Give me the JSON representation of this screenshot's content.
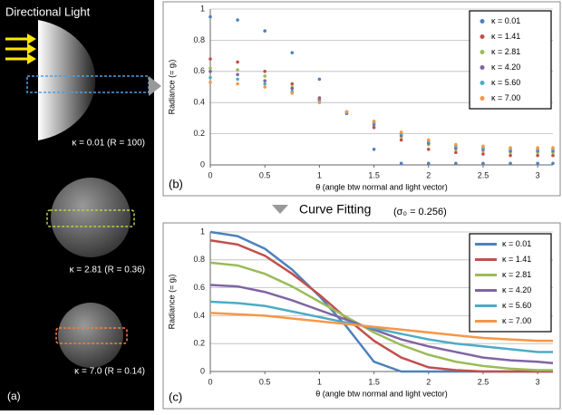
{
  "panel_a": {
    "title": "Directional Light",
    "label_1": "κ = 0.01 (R = 100)",
    "label_2": "κ = 2.81 (R = 0.36)",
    "label_3": "κ = 7.0 (R = 0.14)",
    "panel_label": "(a)"
  },
  "fitting": {
    "title": "Curve Fitting",
    "note": "(σ₀ = 0.256)"
  },
  "chart_data": [
    {
      "type": "scatter",
      "panel_label": "(b)",
      "x_label": "θ (angle btw normal and light vector)",
      "y_label": "Radiance (= gᵢ)",
      "x": [
        0,
        0.25,
        0.5,
        0.75,
        1,
        1.25,
        1.5,
        1.75,
        2,
        2.25,
        2.5,
        2.75,
        3,
        3.14
      ],
      "xlim": [
        0,
        3.14
      ],
      "ylim": [
        0,
        1
      ],
      "xticks": [
        0,
        0.5,
        1,
        1.5,
        2,
        2.5,
        3
      ],
      "yticks": [
        0,
        0.2,
        0.4,
        0.6,
        0.8,
        1
      ],
      "grid": true,
      "legend": "upper right",
      "series": [
        {
          "name": "κ = 0.01",
          "color": "#4f81bd",
          "values": [
            0.95,
            0.93,
            0.86,
            0.72,
            0.55,
            0.33,
            0.1,
            0.01,
            0.01,
            0.01,
            0.01,
            0.01,
            0.01,
            0.01
          ]
        },
        {
          "name": "κ = 1.41",
          "color": "#c0504d",
          "values": [
            0.68,
            0.66,
            0.6,
            0.52,
            0.43,
            0.34,
            0.24,
            0.16,
            0.1,
            0.08,
            0.07,
            0.06,
            0.06,
            0.06
          ]
        },
        {
          "name": "κ = 2.81",
          "color": "#9bbb59",
          "values": [
            0.62,
            0.61,
            0.57,
            0.5,
            0.42,
            0.34,
            0.26,
            0.18,
            0.13,
            0.1,
            0.09,
            0.08,
            0.08,
            0.08
          ]
        },
        {
          "name": "κ = 4.20",
          "color": "#8064a2",
          "values": [
            0.6,
            0.58,
            0.54,
            0.49,
            0.42,
            0.34,
            0.26,
            0.19,
            0.14,
            0.11,
            0.1,
            0.09,
            0.09,
            0.09
          ]
        },
        {
          "name": "κ = 5.60",
          "color": "#4bacc6",
          "values": [
            0.56,
            0.55,
            0.52,
            0.47,
            0.41,
            0.34,
            0.27,
            0.2,
            0.15,
            0.12,
            0.11,
            0.1,
            0.1,
            0.1
          ]
        },
        {
          "name": "κ = 7.00",
          "color": "#f79646",
          "values": [
            0.53,
            0.52,
            0.5,
            0.46,
            0.4,
            0.34,
            0.28,
            0.21,
            0.16,
            0.13,
            0.12,
            0.11,
            0.11,
            0.11
          ]
        }
      ]
    },
    {
      "type": "line",
      "panel_label": "(c)",
      "x_label": "θ (angle btw normal and light vector)",
      "y_label": "Radiance (= gᵢ)",
      "x": [
        0,
        0.25,
        0.5,
        0.75,
        1,
        1.25,
        1.5,
        1.75,
        2,
        2.25,
        2.5,
        2.75,
        3,
        3.14
      ],
      "xlim": [
        0,
        3.14
      ],
      "ylim": [
        0,
        1
      ],
      "xticks": [
        0,
        0.5,
        1,
        1.5,
        2,
        2.5,
        3
      ],
      "yticks": [
        0,
        0.2,
        0.4,
        0.6,
        0.8,
        1
      ],
      "grid": true,
      "legend": "upper right",
      "series": [
        {
          "name": "κ = 0.01",
          "color": "#4f81bd",
          "values": [
            1,
            0.97,
            0.88,
            0.73,
            0.54,
            0.32,
            0.07,
            0,
            0,
            0,
            0,
            0,
            0,
            0
          ]
        },
        {
          "name": "κ = 1.41",
          "color": "#c0504d",
          "values": [
            0.94,
            0.91,
            0.83,
            0.7,
            0.55,
            0.38,
            0.22,
            0.1,
            0.03,
            0.01,
            0,
            0,
            0,
            0
          ]
        },
        {
          "name": "κ = 2.81",
          "color": "#9bbb59",
          "values": [
            0.78,
            0.76,
            0.7,
            0.61,
            0.5,
            0.39,
            0.28,
            0.19,
            0.12,
            0.07,
            0.04,
            0.02,
            0.01,
            0.01
          ]
        },
        {
          "name": "κ = 4.20",
          "color": "#8064a2",
          "values": [
            0.62,
            0.61,
            0.57,
            0.51,
            0.44,
            0.37,
            0.3,
            0.23,
            0.18,
            0.14,
            0.1,
            0.08,
            0.07,
            0.06
          ]
        },
        {
          "name": "κ = 5.60",
          "color": "#4bacc6",
          "values": [
            0.5,
            0.49,
            0.47,
            0.43,
            0.39,
            0.35,
            0.31,
            0.27,
            0.23,
            0.2,
            0.18,
            0.16,
            0.14,
            0.14
          ]
        },
        {
          "name": "κ = 7.00",
          "color": "#f79646",
          "values": [
            0.42,
            0.41,
            0.4,
            0.38,
            0.36,
            0.34,
            0.32,
            0.3,
            0.28,
            0.26,
            0.24,
            0.23,
            0.22,
            0.22
          ]
        }
      ]
    }
  ]
}
